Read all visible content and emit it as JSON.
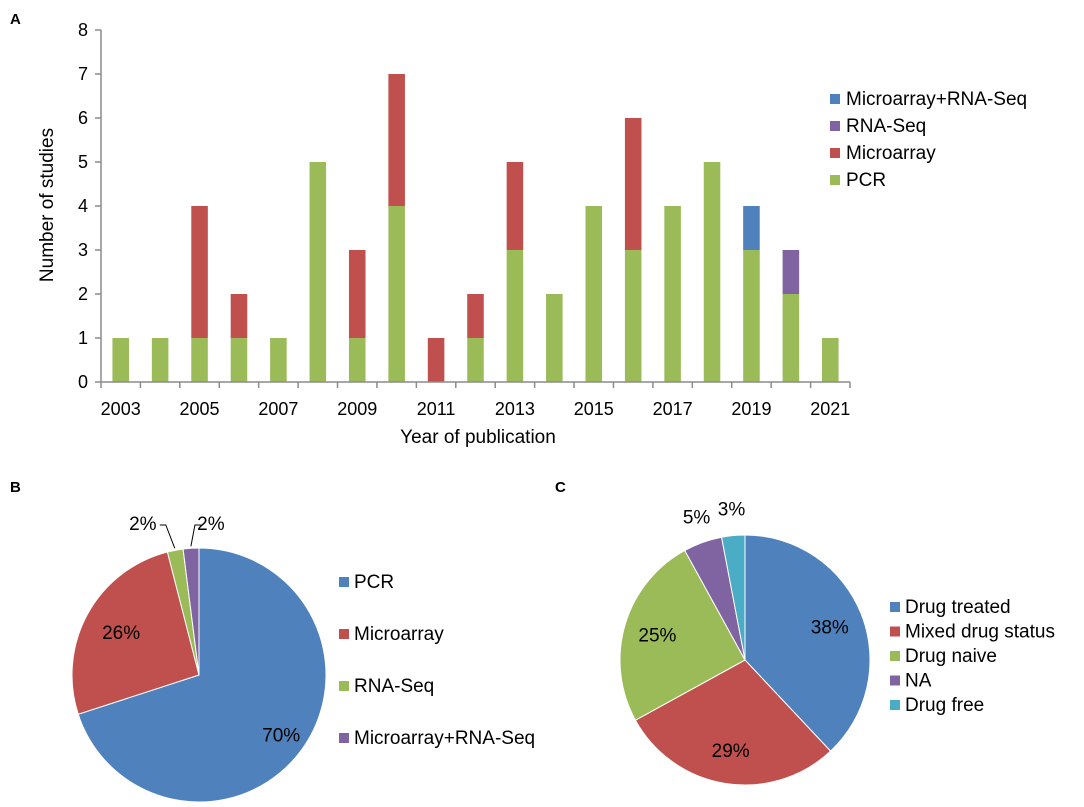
{
  "panels": {
    "a": "A",
    "b": "B",
    "c": "C"
  },
  "chart_data": [
    {
      "type": "bar",
      "stacked": true,
      "xlabel": "Year of publication",
      "ylabel": "Number of studies",
      "ylim": [
        0,
        8
      ],
      "yticks": [
        "0",
        "1",
        "2",
        "3",
        "4",
        "5",
        "6",
        "7",
        "8"
      ],
      "categories": [
        "2003",
        "2004",
        "2005",
        "2006",
        "2007",
        "2008",
        "2009",
        "2010",
        "2011",
        "2012",
        "2013",
        "2014",
        "2015",
        "2016",
        "2017",
        "2018",
        "2019",
        "2020",
        "2021"
      ],
      "xtick_labels": [
        "2003",
        "2005",
        "2007",
        "2009",
        "2011",
        "2013",
        "2015",
        "2017",
        "2019",
        "2021"
      ],
      "legend_position": "right",
      "series": [
        {
          "name": "PCR",
          "color": "#9bbb59",
          "values": [
            1,
            1,
            1,
            1,
            1,
            5,
            1,
            4,
            0,
            1,
            3,
            2,
            4,
            3,
            4,
            5,
            3,
            2,
            1
          ]
        },
        {
          "name": "Microarray",
          "color": "#c0504d",
          "values": [
            0,
            0,
            3,
            1,
            0,
            0,
            2,
            3,
            1,
            1,
            2,
            0,
            0,
            3,
            0,
            0,
            0,
            0,
            0
          ]
        },
        {
          "name": "RNA-Seq",
          "color": "#8064a2",
          "values": [
            0,
            0,
            0,
            0,
            0,
            0,
            0,
            0,
            0,
            0,
            0,
            0,
            0,
            0,
            0,
            0,
            0,
            1,
            0
          ]
        },
        {
          "name": "Microarray+RNA-Seq",
          "color": "#4f81bd",
          "values": [
            0,
            0,
            0,
            0,
            0,
            0,
            0,
            0,
            0,
            0,
            0,
            0,
            0,
            0,
            0,
            0,
            1,
            0,
            0
          ]
        }
      ],
      "legend_order": [
        "Microarray+RNA-Seq",
        "RNA-Seq",
        "Microarray",
        "PCR"
      ]
    },
    {
      "type": "pie",
      "slices": [
        {
          "label": "PCR",
          "value": 70,
          "display": "70%",
          "color": "#4f81bd"
        },
        {
          "label": "Microarray",
          "value": 26,
          "display": "26%",
          "color": "#c0504d"
        },
        {
          "label": "RNA-Seq",
          "value": 2,
          "display": "2%",
          "color": "#9bbb59"
        },
        {
          "label": "Microarray+RNA-Seq",
          "value": 2,
          "display": "2%",
          "color": "#8064a2"
        }
      ],
      "legend_position": "right"
    },
    {
      "type": "pie",
      "slices": [
        {
          "label": "Drug treated",
          "value": 38,
          "display": "38%",
          "color": "#4f81bd"
        },
        {
          "label": "Mixed drug status",
          "value": 29,
          "display": "29%",
          "color": "#c0504d"
        },
        {
          "label": "Drug naive",
          "value": 25,
          "display": "25%",
          "color": "#9bbb59"
        },
        {
          "label": "NA",
          "value": 5,
          "display": "5%",
          "color": "#8064a2"
        },
        {
          "label": "Drug free",
          "value": 3,
          "display": "3%",
          "color": "#4bacc6"
        }
      ],
      "legend_position": "right"
    }
  ]
}
